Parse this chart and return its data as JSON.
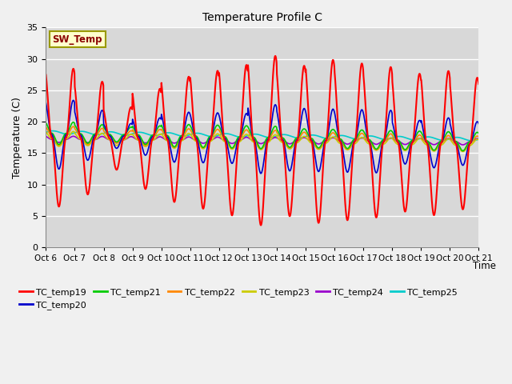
{
  "title": "Temperature Profile C",
  "xlabel": "Time",
  "ylabel": "Temperature (C)",
  "ylim": [
    0,
    35
  ],
  "yticks": [
    0,
    5,
    10,
    15,
    20,
    25,
    30,
    35
  ],
  "x_labels": [
    "Oct 6",
    "Oct 7",
    "Oct 8",
    "Oct 9",
    "Oct 10",
    "Oct 11",
    "Oct 12",
    "Oct 13",
    "Oct 14",
    "Oct 15",
    "Oct 16",
    "Oct 17",
    "Oct 18",
    "Oct 19",
    "Oct 20",
    "Oct 21"
  ],
  "sw_temp_label": "SW_Temp",
  "legend_entries": [
    "TC_temp19",
    "TC_temp20",
    "TC_temp21",
    "TC_temp22",
    "TC_temp23",
    "TC_temp24",
    "TC_temp25"
  ],
  "line_colors": [
    "#ff0000",
    "#0000cc",
    "#00cc00",
    "#ff8800",
    "#cccc00",
    "#9900cc",
    "#00cccc"
  ],
  "background_color": "#d8d8d8",
  "fig_bg_color": "#f0f0f0"
}
